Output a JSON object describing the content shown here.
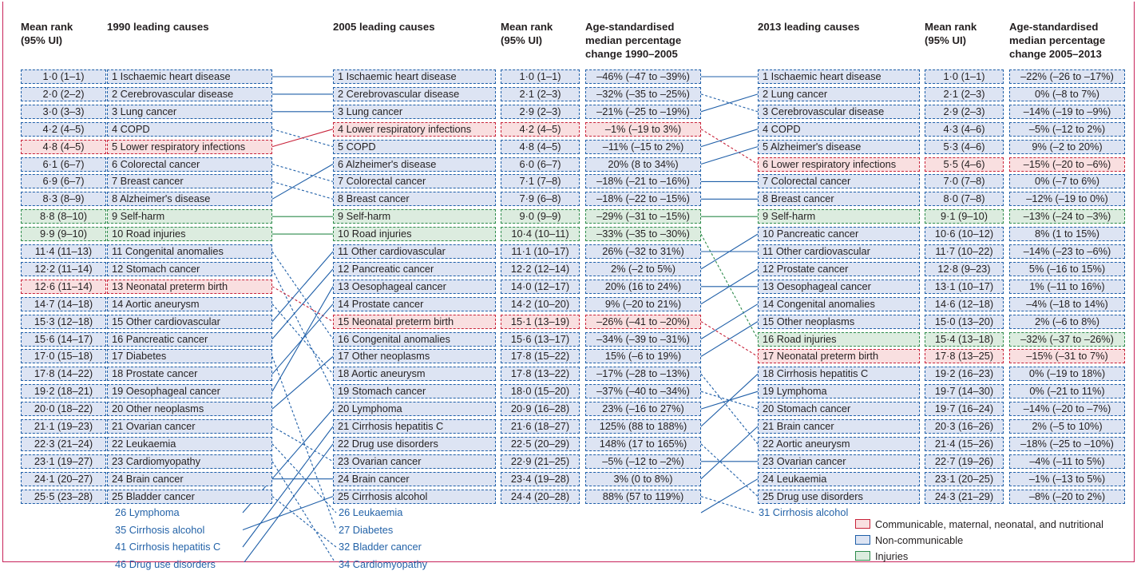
{
  "headers": {
    "rank1990": "Mean rank\n(95% UI)",
    "causes1990": "1990 leading causes",
    "causes2005": "2005 leading causes",
    "rank2005": "Mean rank\n(95% UI)",
    "change2005": "Age-standardised\nmedian percentage\nchange 1990–2005",
    "causes2013": "2013 leading causes",
    "rank2013": "Mean rank\n(95% UI)",
    "change2013": "Age-standardised\nmedian percentage\nchange 2005–2013"
  },
  "legend": [
    {
      "key": "cm",
      "label": "Communicable, maternal, neonatal, and nutritional"
    },
    {
      "key": "nc",
      "label": "Non-communicable"
    },
    {
      "key": "inj",
      "label": "Injuries"
    }
  ],
  "colors": {
    "communicable": "#c8233a",
    "noncommunicable": "#1f5fa8",
    "injuries": "#2e8b4c",
    "extra_text": "#2463a8",
    "frame": "#c8235a"
  },
  "chart_data": {
    "type": "table",
    "y1990": {
      "rows": [
        {
          "rank": "1·0 (1–1)",
          "cause": "1 Ischaemic heart disease",
          "cat": "nc"
        },
        {
          "rank": "2·0 (2–2)",
          "cause": "2 Cerebrovascular disease",
          "cat": "nc"
        },
        {
          "rank": "3·0 (3–3)",
          "cause": "3 Lung cancer",
          "cat": "nc"
        },
        {
          "rank": "4·2 (4–5)",
          "cause": "4 COPD",
          "cat": "nc"
        },
        {
          "rank": "4·8 (4–5)",
          "cause": "5 Lower respiratory infections",
          "cat": "cm"
        },
        {
          "rank": "6·1 (6–7)",
          "cause": "6 Colorectal cancer",
          "cat": "nc"
        },
        {
          "rank": "6·9 (6–7)",
          "cause": "7 Breast cancer",
          "cat": "nc"
        },
        {
          "rank": "8·3 (8–9)",
          "cause": "8 Alzheimer's disease",
          "cat": "nc"
        },
        {
          "rank": "8·8 (8–10)",
          "cause": "9 Self-harm",
          "cat": "inj"
        },
        {
          "rank": "9·9 (9–10)",
          "cause": "10 Road injuries",
          "cat": "inj"
        },
        {
          "rank": "11·4 (11–13)",
          "cause": "11 Congenital anomalies",
          "cat": "nc"
        },
        {
          "rank": "12·2 (11–14)",
          "cause": "12 Stomach cancer",
          "cat": "nc"
        },
        {
          "rank": "12·6 (11–14)",
          "cause": "13 Neonatal preterm birth",
          "cat": "cm"
        },
        {
          "rank": "14·7 (14–18)",
          "cause": "14 Aortic aneurysm",
          "cat": "nc"
        },
        {
          "rank": "15·3 (12–18)",
          "cause": "15 Other cardiovascular",
          "cat": "nc"
        },
        {
          "rank": "15·6 (14–17)",
          "cause": "16 Pancreatic cancer",
          "cat": "nc"
        },
        {
          "rank": "17·0 (15–18)",
          "cause": "17 Diabetes",
          "cat": "nc"
        },
        {
          "rank": "17·8 (14–22)",
          "cause": "18 Prostate cancer",
          "cat": "nc"
        },
        {
          "rank": "19·2 (18–21)",
          "cause": "19 Oesophageal cancer",
          "cat": "nc"
        },
        {
          "rank": "20·0 (18–22)",
          "cause": "20 Other neoplasms",
          "cat": "nc"
        },
        {
          "rank": "21·1 (19–23)",
          "cause": "21 Ovarian cancer",
          "cat": "nc"
        },
        {
          "rank": "22·3 (21–24)",
          "cause": "22 Leukaemia",
          "cat": "nc"
        },
        {
          "rank": "23·1 (19–27)",
          "cause": "23 Cardiomyopathy",
          "cat": "nc"
        },
        {
          "rank": "24·1 (20–27)",
          "cause": "24 Brain cancer",
          "cat": "nc"
        },
        {
          "rank": "25·5 (23–28)",
          "cause": "25 Bladder cancer",
          "cat": "nc"
        }
      ],
      "extras": [
        "26 Lymphoma",
        "35 Cirrhosis alcohol",
        "41 Cirrhosis hepatitis C",
        "46 Drug use disorders"
      ]
    },
    "y2005": {
      "rows": [
        {
          "cause": "1 Ischaemic heart disease",
          "rank": "1·0 (1–1)",
          "change": "–46% (–47 to –39%)",
          "cat": "nc"
        },
        {
          "cause": "2 Cerebrovascular disease",
          "rank": "2·1 (2–3)",
          "change": "–32% (–35 to –25%)",
          "cat": "nc"
        },
        {
          "cause": "3 Lung cancer",
          "rank": "2·9 (2–3)",
          "change": "–21% (–25 to –19%)",
          "cat": "nc"
        },
        {
          "cause": "4 Lower respiratory infections",
          "rank": "4·2 (4–5)",
          "change": "–1% (–19 to 3%)",
          "cat": "cm"
        },
        {
          "cause": "5 COPD",
          "rank": "4·8 (4–5)",
          "change": "–11% (–15 to 2%)",
          "cat": "nc"
        },
        {
          "cause": "6 Alzheimer's disease",
          "rank": "6·0 (6–7)",
          "change": "20% (8 to 34%)",
          "cat": "nc"
        },
        {
          "cause": "7 Colorectal cancer",
          "rank": "7·1 (7–8)",
          "change": "–18% (–21 to –16%)",
          "cat": "nc"
        },
        {
          "cause": "8 Breast cancer",
          "rank": "7·9 (6–8)",
          "change": "–18% (–22 to –15%)",
          "cat": "nc"
        },
        {
          "cause": "9 Self-harm",
          "rank": "9·0 (9–9)",
          "change": "–29% (–31 to –15%)",
          "cat": "inj"
        },
        {
          "cause": "10 Road injuries",
          "rank": "10·4 (10–11)",
          "change": "–33% (–35 to –30%)",
          "cat": "inj"
        },
        {
          "cause": "11 Other cardiovascular",
          "rank": "11·1 (10–17)",
          "change": "26% (–32 to 31%)",
          "cat": "nc"
        },
        {
          "cause": "12 Pancreatic cancer",
          "rank": "12·2 (12–14)",
          "change": "2% (–2 to 5%)",
          "cat": "nc"
        },
        {
          "cause": "13 Oesophageal cancer",
          "rank": "14·0 (12–17)",
          "change": "20% (16 to 24%)",
          "cat": "nc"
        },
        {
          "cause": "14 Prostate cancer",
          "rank": "14·2 (10–20)",
          "change": "9% (–20 to 21%)",
          "cat": "nc"
        },
        {
          "cause": "15 Neonatal preterm birth",
          "rank": "15·1 (13–19)",
          "change": "–26% (–41 to –20%)",
          "cat": "cm"
        },
        {
          "cause": "16 Congenital anomalies",
          "rank": "15·6 (13–17)",
          "change": "–34% (–39 to –31%)",
          "cat": "nc"
        },
        {
          "cause": "17 Other neoplasms",
          "rank": "17·8 (15–22)",
          "change": "15% (–6 to 19%)",
          "cat": "nc"
        },
        {
          "cause": "18 Aortic aneurysm",
          "rank": "17·8 (13–22)",
          "change": "–17% (–28 to –13%)",
          "cat": "nc"
        },
        {
          "cause": "19 Stomach cancer",
          "rank": "18·0 (15–20)",
          "change": "–37% (–40 to –34%)",
          "cat": "nc"
        },
        {
          "cause": "20 Lymphoma",
          "rank": "20·9 (16–28)",
          "change": "23% (–16 to 27%)",
          "cat": "nc"
        },
        {
          "cause": "21 Cirrhosis hepatitis C",
          "rank": "21·6 (18–27)",
          "change": "125% (88 to 188%)",
          "cat": "nc"
        },
        {
          "cause": "22 Drug use disorders",
          "rank": "22·5 (20–29)",
          "change": "148% (17 to 165%)",
          "cat": "nc"
        },
        {
          "cause": "23 Ovarian cancer",
          "rank": "22·9 (21–25)",
          "change": "–5% (–12 to –2%)",
          "cat": "nc"
        },
        {
          "cause": "24 Brain cancer",
          "rank": "23·4 (19–28)",
          "change": "3% (0 to 8%)",
          "cat": "nc"
        },
        {
          "cause": "25 Cirrhosis alcohol",
          "rank": "24·4 (20–28)",
          "change": "88% (57 to 119%)",
          "cat": "nc"
        }
      ],
      "extras": [
        "26 Leukaemia",
        "27 Diabetes",
        "32 Bladder cancer",
        "34 Cardiomyopathy"
      ]
    },
    "y2013": {
      "rows": [
        {
          "cause": "1 Ischaemic heart disease",
          "rank": "1·0 (1–1)",
          "change": "–22% (–26 to –17%)",
          "cat": "nc"
        },
        {
          "cause": "2 Lung cancer",
          "rank": "2·1 (2–3)",
          "change": "0% (–8 to 7%)",
          "cat": "nc"
        },
        {
          "cause": "3 Cerebrovascular disease",
          "rank": "2·9 (2–3)",
          "change": "–14% (–19 to –9%)",
          "cat": "nc"
        },
        {
          "cause": "4 COPD",
          "rank": "4·3 (4–6)",
          "change": "–5% (–12 to 2%)",
          "cat": "nc"
        },
        {
          "cause": "5 Alzheimer's disease",
          "rank": "5·3 (4–6)",
          "change": "9% (–2 to 20%)",
          "cat": "nc"
        },
        {
          "cause": "6 Lower respiratory infections",
          "rank": "5·5 (4–6)",
          "change": "–15% (–20 to –6%)",
          "cat": "cm"
        },
        {
          "cause": "7 Colorectal cancer",
          "rank": "7·0 (7–8)",
          "change": "0% (–7 to 6%)",
          "cat": "nc"
        },
        {
          "cause": "8 Breast cancer",
          "rank": "8·0 (7–8)",
          "change": "–12% (–19 to 0%)",
          "cat": "nc"
        },
        {
          "cause": "9 Self-harm",
          "rank": "9·1 (9–10)",
          "change": "–13% (–24 to –3%)",
          "cat": "inj"
        },
        {
          "cause": "10 Pancreatic cancer",
          "rank": "10·6 (10–12)",
          "change": "8% (1 to 15%)",
          "cat": "nc"
        },
        {
          "cause": "11 Other cardiovascular",
          "rank": "11·7 (10–22)",
          "change": "–14% (–23 to –6%)",
          "cat": "nc"
        },
        {
          "cause": "12 Prostate cancer",
          "rank": "12·8 (9–23)",
          "change": "5% (–16 to 15%)",
          "cat": "nc"
        },
        {
          "cause": "13 Oesophageal cancer",
          "rank": "13·1 (10–17)",
          "change": "1% (–11 to 16%)",
          "cat": "nc"
        },
        {
          "cause": "14 Congenital anomalies",
          "rank": "14·6 (12–18)",
          "change": "–4% (–18 to 14%)",
          "cat": "nc"
        },
        {
          "cause": "15 Other neoplasms",
          "rank": "15·0 (13–20)",
          "change": "2% (–6 to 8%)",
          "cat": "nc"
        },
        {
          "cause": "16 Road injuries",
          "rank": "15·4 (13–18)",
          "change": "–32% (–37 to –26%)",
          "cat": "inj"
        },
        {
          "cause": "17 Neonatal preterm birth",
          "rank": "17·8 (13–25)",
          "change": "–15% (–31 to 7%)",
          "cat": "cm"
        },
        {
          "cause": "18 Cirrhosis hepatitis C",
          "rank": "19·2 (16–23)",
          "change": "0% (–19 to 18%)",
          "cat": "nc"
        },
        {
          "cause": "19 Lymphoma",
          "rank": "19·7 (14–30)",
          "change": "0% (–21 to 11%)",
          "cat": "nc"
        },
        {
          "cause": "20 Stomach cancer",
          "rank": "19·7 (16–24)",
          "change": "–14% (–20 to –7%)",
          "cat": "nc"
        },
        {
          "cause": "21 Brain cancer",
          "rank": "20·3 (16–26)",
          "change": "2% (–5 to 10%)",
          "cat": "nc"
        },
        {
          "cause": "22 Aortic aneurysm",
          "rank": "21·4 (15–26)",
          "change": "–18% (–25 to –10%)",
          "cat": "nc"
        },
        {
          "cause": "23 Ovarian cancer",
          "rank": "22·7 (19–26)",
          "change": "–4% (–11 to 5%)",
          "cat": "nc"
        },
        {
          "cause": "24 Leukaemia",
          "rank": "23·1 (20–25)",
          "change": "–1% (–13 to 5%)",
          "cat": "nc"
        },
        {
          "cause": "25 Drug use disorders",
          "rank": "24·3 (21–29)",
          "change": "–8% (–20 to 2%)",
          "cat": "nc"
        }
      ],
      "extras": [
        "31 Cirrhosis alcohol"
      ]
    },
    "links_1990_2005": [
      {
        "from": 1,
        "to": 1
      },
      {
        "from": 2,
        "to": 2
      },
      {
        "from": 3,
        "to": 3
      },
      {
        "from": 4,
        "to": 5
      },
      {
        "from": 5,
        "to": 4
      },
      {
        "from": 6,
        "to": 7
      },
      {
        "from": 7,
        "to": 8
      },
      {
        "from": 8,
        "to": 6
      },
      {
        "from": 9,
        "to": 9
      },
      {
        "from": 10,
        "to": 10
      },
      {
        "from": 11,
        "to": 16
      },
      {
        "from": 12,
        "to": 19
      },
      {
        "from": 13,
        "to": 15
      },
      {
        "from": 14,
        "to": 18
      },
      {
        "from": 15,
        "to": 11
      },
      {
        "from": 16,
        "to": 12
      },
      {
        "from": 17,
        "to": 27
      },
      {
        "from": 18,
        "to": 14
      },
      {
        "from": 19,
        "to": 13
      },
      {
        "from": 20,
        "to": 17
      },
      {
        "from": 21,
        "to": 23
      },
      {
        "from": 22,
        "to": 26
      },
      {
        "from": 23,
        "to": 34
      },
      {
        "from": 24,
        "to": 24
      },
      {
        "from": 25,
        "to": 32
      },
      {
        "from": 26,
        "to": 20
      },
      {
        "from": 35,
        "to": 25
      },
      {
        "from": 41,
        "to": 21
      },
      {
        "from": 46,
        "to": 22
      }
    ],
    "links_2005_2013": [
      {
        "from": 1,
        "to": 1
      },
      {
        "from": 2,
        "to": 3
      },
      {
        "from": 3,
        "to": 2
      },
      {
        "from": 4,
        "to": 6
      },
      {
        "from": 5,
        "to": 4
      },
      {
        "from": 6,
        "to": 5
      },
      {
        "from": 7,
        "to": 7
      },
      {
        "from": 8,
        "to": 8
      },
      {
        "from": 9,
        "to": 9
      },
      {
        "from": 10,
        "to": 16
      },
      {
        "from": 11,
        "to": 11
      },
      {
        "from": 12,
        "to": 10
      },
      {
        "from": 13,
        "to": 13
      },
      {
        "from": 14,
        "to": 12
      },
      {
        "from": 15,
        "to": 17
      },
      {
        "from": 16,
        "to": 14
      },
      {
        "from": 17,
        "to": 15
      },
      {
        "from": 18,
        "to": 22
      },
      {
        "from": 19,
        "to": 20
      },
      {
        "from": 20,
        "to": 19
      },
      {
        "from": 21,
        "to": 18
      },
      {
        "from": 22,
        "to": 25
      },
      {
        "from": 23,
        "to": 23
      },
      {
        "from": 24,
        "to": 21
      },
      {
        "from": 25,
        "to": 31
      },
      {
        "from": 26,
        "to": 24
      }
    ]
  }
}
